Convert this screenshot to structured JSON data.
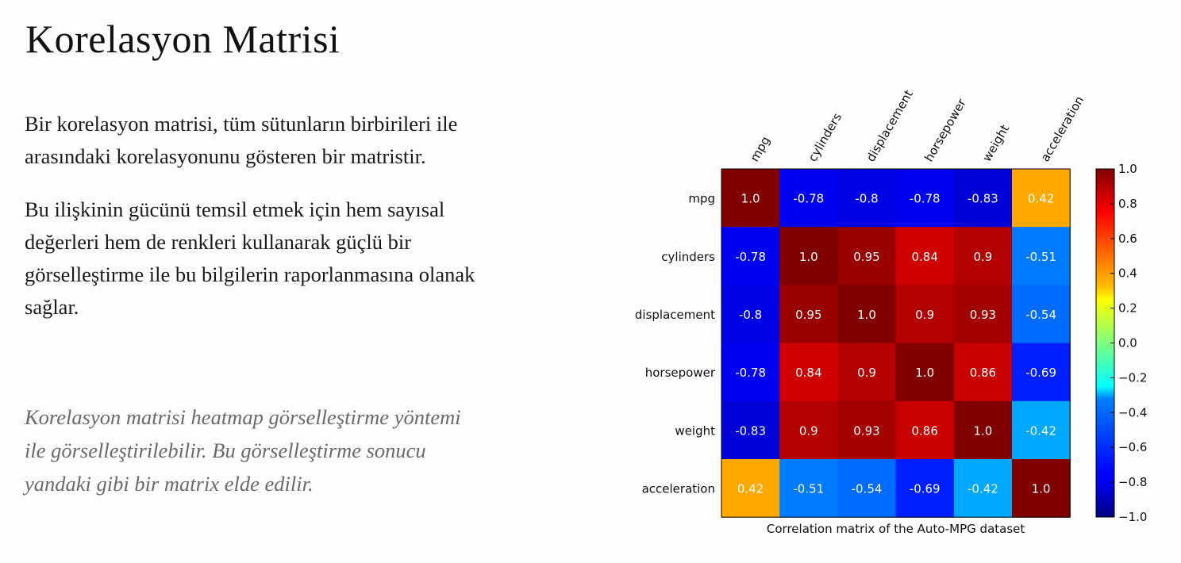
{
  "slide": {
    "title": "Korelasyon Matrisi",
    "paragraph1_lines": [
      "Bir korelasyon matrisi, tüm sütunların birbirileri ile",
      "arasındaki korelasyonunu gösteren bir matristir."
    ],
    "paragraph2_lines": [
      "Bu ilişkinin gücünü temsil etmek için hem sayısal",
      "değerleri hem de renkleri kullanarak güçlü bir",
      "görselleştirme ile bu bilgilerin raporlanmasına olanak",
      "sağlar."
    ],
    "note_lines": [
      "Korelasyon matrisi heatmap görselleştirme yöntemi",
      "ile görselleştirilebilir. Bu görselleştirme sonucu",
      "yandaki gibi bir matrix elde edilir."
    ]
  },
  "chart_data": {
    "type": "heatmap",
    "xlabel": "Correlation matrix of the Auto-MPG dataset",
    "ylabel": "",
    "columns": [
      "mpg",
      "cylinders",
      "displacement",
      "horsepower",
      "weight",
      "acceleration"
    ],
    "rows": [
      "mpg",
      "cylinders",
      "displacement",
      "horsepower",
      "weight",
      "acceleration"
    ],
    "values": [
      [
        1.0,
        -0.78,
        -0.8,
        -0.78,
        -0.83,
        0.42
      ],
      [
        -0.78,
        1.0,
        0.95,
        0.84,
        0.9,
        -0.51
      ],
      [
        -0.8,
        0.95,
        1.0,
        0.9,
        0.93,
        -0.54
      ],
      [
        -0.78,
        0.84,
        0.9,
        1.0,
        0.86,
        -0.69
      ],
      [
        -0.83,
        0.9,
        0.93,
        0.86,
        1.0,
        -0.42
      ],
      [
        0.42,
        -0.51,
        -0.54,
        -0.69,
        -0.42,
        1.0
      ]
    ],
    "value_labels": [
      [
        "1.0",
        "-0.78",
        "-0.8",
        "-0.78",
        "-0.83",
        "0.42"
      ],
      [
        "-0.78",
        "1.0",
        "0.95",
        "0.84",
        "0.9",
        "-0.51"
      ],
      [
        "-0.8",
        "0.95",
        "1.0",
        "0.9",
        "0.93",
        "-0.54"
      ],
      [
        "-0.78",
        "0.84",
        "0.9",
        "1.0",
        "0.86",
        "-0.69"
      ],
      [
        "-0.83",
        "0.9",
        "0.93",
        "0.86",
        "1.0",
        "-0.42"
      ],
      [
        "0.42",
        "-0.51",
        "-0.54",
        "-0.69",
        "-0.42",
        "1.0"
      ]
    ],
    "colorbar": {
      "range": [
        -1.0,
        1.0
      ],
      "ticks": [
        1.0,
        0.8,
        0.6,
        0.4,
        0.2,
        0.0,
        -0.2,
        -0.4,
        -0.6,
        -0.8,
        -1.0
      ],
      "tick_labels": [
        "1.0",
        "0.8",
        "0.6",
        "0.4",
        "0.2",
        "0.0",
        "−0.2",
        "−0.4",
        "−0.6",
        "−0.8",
        "−1.0"
      ],
      "colormap": "jet"
    },
    "grid": false,
    "legend": "colorbar-right"
  }
}
